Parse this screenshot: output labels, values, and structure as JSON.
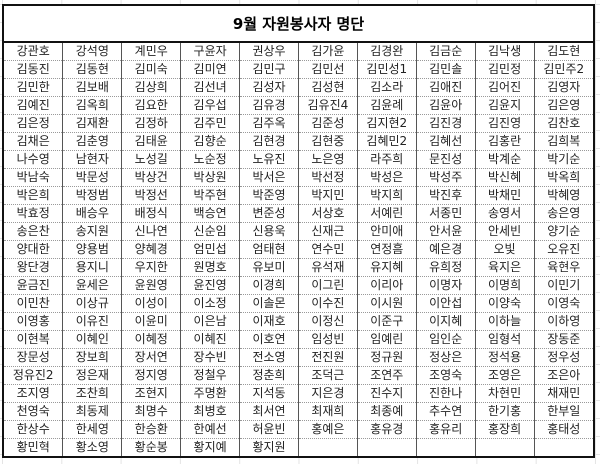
{
  "title": "9월 자원봉사자 명단",
  "rows": [
    [
      "강관호",
      "강석영",
      "계민우",
      "구윤자",
      "권상우",
      "김가윤",
      "김경완",
      "김금순",
      "김낙생",
      "김도현"
    ],
    [
      "김동진",
      "김동현",
      "김미숙",
      "김미연",
      "김민구",
      "김민선",
      "김민성1",
      "김민솔",
      "김민정",
      "김민주2"
    ],
    [
      "김민한",
      "김보배",
      "김상희",
      "김선녀",
      "김성자",
      "김성현",
      "김소라",
      "김애진",
      "김어진",
      "김영자"
    ],
    [
      "김예진",
      "김옥희",
      "김요한",
      "김우섭",
      "김유경",
      "김유진4",
      "김윤례",
      "김윤아",
      "김윤지",
      "김은영"
    ],
    [
      "김은정",
      "김재환",
      "김정하",
      "김주민",
      "김주옥",
      "김준성",
      "김지현2",
      "김진경",
      "김진영",
      "김찬호"
    ],
    [
      "김채은",
      "김춘영",
      "김태윤",
      "김향순",
      "김현경",
      "김현중",
      "김혜민2",
      "김혜선",
      "김홍란",
      "김희복"
    ],
    [
      "나수영",
      "남현자",
      "노성길",
      "노순정",
      "노유진",
      "노은영",
      "라주희",
      "문진성",
      "박계순",
      "박기순"
    ],
    [
      "박남숙",
      "박문성",
      "박상건",
      "박상원",
      "박서은",
      "박선정",
      "박성은",
      "박성주",
      "박신혜",
      "박옥희"
    ],
    [
      "박은희",
      "박정범",
      "박정선",
      "박주현",
      "박준영",
      "박지민",
      "박지희",
      "박진후",
      "박채민",
      "박혜영"
    ],
    [
      "박효정",
      "배승우",
      "배정식",
      "백승연",
      "변준성",
      "서상호",
      "서예린",
      "서종민",
      "송영서",
      "송은영"
    ],
    [
      "송은찬",
      "송지원",
      "신나연",
      "신순임",
      "신용욱",
      "신재근",
      "안미애",
      "안서윤",
      "안세빈",
      "양기순"
    ],
    [
      "양대한",
      "양용범",
      "양혜경",
      "엄민섭",
      "엄태현",
      "연수민",
      "연정흠",
      "예은경",
      "오빛",
      "오유진"
    ],
    [
      "왕단경",
      "용지니",
      "우지한",
      "원명호",
      "유보미",
      "유석재",
      "유지혜",
      "유희정",
      "육지은",
      "육현우"
    ],
    [
      "윤금진",
      "윤세은",
      "윤원영",
      "윤진영",
      "이경희",
      "이그린",
      "이리아",
      "이명자",
      "이명희",
      "이민기"
    ],
    [
      "이민찬",
      "이상규",
      "이성이",
      "이소정",
      "이솔몬",
      "이수진",
      "이시원",
      "이안섭",
      "이양숙",
      "이영숙"
    ],
    [
      "이영홍",
      "이유진",
      "이윤미",
      "이은남",
      "이재호",
      "이정신",
      "이준구",
      "이지혜",
      "이하늘",
      "이하영"
    ],
    [
      "이현복",
      "이혜인",
      "이혜정",
      "이혜진",
      "이호연",
      "임성빈",
      "임예린",
      "임인순",
      "임형석",
      "장동준"
    ],
    [
      "장문성",
      "장보희",
      "장서연",
      "장수빈",
      "전소영",
      "전진원",
      "정규원",
      "정상은",
      "정석용",
      "정우성"
    ],
    [
      "정유진2",
      "정은재",
      "정지영",
      "정철우",
      "정춘희",
      "조덕근",
      "조연주",
      "조영숙",
      "조영은",
      "조은아"
    ],
    [
      "조지영",
      "조찬희",
      "조현지",
      "주명환",
      "지석동",
      "지은경",
      "진수지",
      "진한나",
      "차현민",
      "채재민"
    ],
    [
      "천영숙",
      "최동제",
      "최명수",
      "최병호",
      "최서연",
      "최재희",
      "최종예",
      "추수연",
      "한기홍",
      "한부일"
    ],
    [
      "한상수",
      "한세영",
      "한승환",
      "한예선",
      "허윤빈",
      "홍예은",
      "홍유경",
      "홍유리",
      "홍장희",
      "홍태성"
    ],
    [
      "황민혁",
      "황소영",
      "황순봉",
      "황지예",
      "황지원",
      "",
      "",
      "",
      "",
      ""
    ]
  ]
}
